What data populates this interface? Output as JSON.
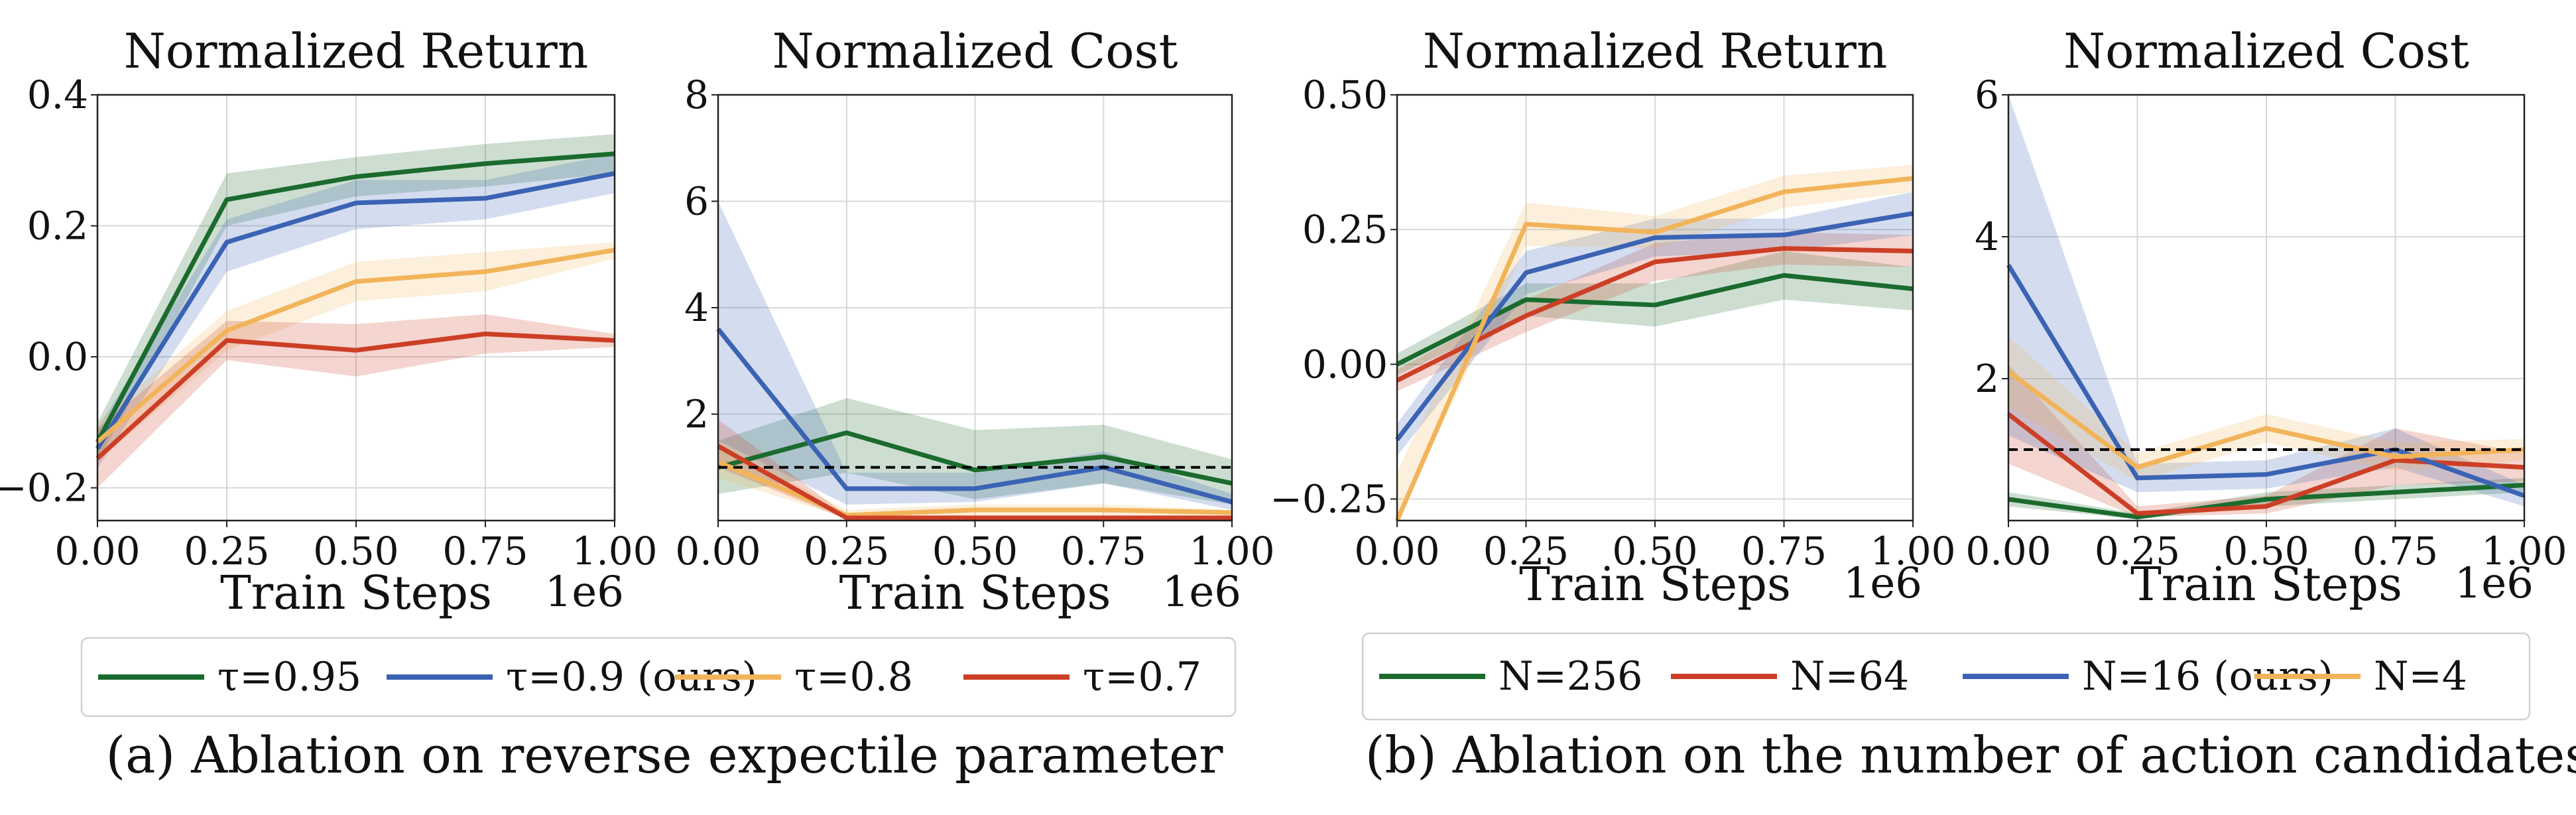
{
  "colors": {
    "green": "#1b6b2e",
    "blue": "#3b63b4",
    "orange": "#f2b45a",
    "red": "#cc3f26"
  },
  "captions": {
    "a": "(a) Ablation on reverse expectile parameter",
    "b": "(b) Ablation on the number of action candidates"
  },
  "chart_data": [
    {
      "type": "line",
      "title": "Normalized Return",
      "xlabel": "Train Steps",
      "x_offset_label": "1e6",
      "x": [
        0.0,
        0.25,
        0.5,
        0.75,
        1.0
      ],
      "xticks": [
        "0.00",
        "0.25",
        "0.50",
        "0.75",
        "1.00"
      ],
      "ylim": [
        -0.25,
        0.4
      ],
      "yticks": [
        -0.2,
        0.0,
        0.2,
        0.4
      ],
      "ytick_labels": [
        "−0.2",
        "0.0",
        "0.2",
        "0.4"
      ],
      "grid": true,
      "series": [
        {
          "name": "τ=0.95",
          "color": "green",
          "values": [
            -0.13,
            0.24,
            0.275,
            0.295,
            0.31
          ],
          "lower": [
            -0.16,
            0.2,
            0.245,
            0.26,
            0.28
          ],
          "upper": [
            -0.1,
            0.28,
            0.305,
            0.325,
            0.34
          ]
        },
        {
          "name": "τ=0.9 (ours)",
          "color": "blue",
          "values": [
            -0.14,
            0.175,
            0.235,
            0.242,
            0.28
          ],
          "lower": [
            -0.17,
            0.13,
            0.195,
            0.21,
            0.25
          ],
          "upper": [
            -0.11,
            0.21,
            0.27,
            0.27,
            0.31
          ]
        },
        {
          "name": "τ=0.8",
          "color": "orange",
          "values": [
            -0.13,
            0.04,
            0.115,
            0.13,
            0.163
          ],
          "lower": [
            -0.16,
            0.01,
            0.085,
            0.1,
            0.15
          ],
          "upper": [
            -0.1,
            0.07,
            0.145,
            0.16,
            0.175
          ]
        },
        {
          "name": "τ=0.7",
          "color": "red",
          "values": [
            -0.155,
            0.025,
            0.01,
            0.035,
            0.025
          ],
          "lower": [
            -0.2,
            -0.005,
            -0.03,
            0.005,
            0.015
          ],
          "upper": [
            -0.11,
            0.055,
            0.05,
            0.065,
            0.035
          ]
        }
      ]
    },
    {
      "type": "line",
      "title": "Normalized Cost",
      "xlabel": "Train Steps",
      "x_offset_label": "1e6",
      "x": [
        0.0,
        0.25,
        0.5,
        0.75,
        1.0
      ],
      "xticks": [
        "0.00",
        "0.25",
        "0.50",
        "0.75",
        "1.00"
      ],
      "ylim": [
        0,
        8
      ],
      "yticks": [
        2,
        4,
        6,
        8
      ],
      "ytick_labels": [
        "2",
        "4",
        "6",
        "8"
      ],
      "threshold": 1.0,
      "grid": true,
      "series": [
        {
          "name": "τ=0.95",
          "color": "green",
          "values": [
            1.0,
            1.65,
            0.95,
            1.2,
            0.7
          ],
          "lower": [
            0.5,
            0.9,
            0.4,
            0.7,
            0.3
          ],
          "upper": [
            1.5,
            2.3,
            1.7,
            1.8,
            1.15
          ]
        },
        {
          "name": "τ=0.9 (ours)",
          "color": "blue",
          "values": [
            3.6,
            0.6,
            0.6,
            1.0,
            0.35
          ],
          "lower": [
            1.5,
            0.3,
            0.35,
            0.7,
            0.2
          ],
          "upper": [
            6.0,
            0.9,
            0.9,
            1.3,
            0.5
          ]
        },
        {
          "name": "τ=0.8",
          "color": "orange",
          "values": [
            1.1,
            0.1,
            0.2,
            0.2,
            0.15
          ],
          "lower": [
            0.8,
            0.05,
            0.1,
            0.1,
            0.1
          ],
          "upper": [
            1.4,
            0.2,
            0.3,
            0.3,
            0.2
          ]
        },
        {
          "name": "τ=0.7",
          "color": "red",
          "values": [
            1.4,
            0.05,
            0.05,
            0.05,
            0.05
          ],
          "lower": [
            1.0,
            0.02,
            0.02,
            0.02,
            0.02
          ],
          "upper": [
            1.9,
            0.1,
            0.1,
            0.1,
            0.1
          ]
        }
      ]
    },
    {
      "type": "line",
      "title": "Normalized Return",
      "xlabel": "Train Steps",
      "x_offset_label": "1e6",
      "x": [
        0.0,
        0.25,
        0.5,
        0.75,
        1.0
      ],
      "xticks": [
        "0.00",
        "0.25",
        "0.50",
        "0.75",
        "1.00"
      ],
      "ylim": [
        -0.29,
        0.5
      ],
      "yticks": [
        -0.25,
        0.0,
        0.25,
        0.5
      ],
      "ytick_labels": [
        "−0.25",
        "0.00",
        "0.25",
        "0.50"
      ],
      "grid": true,
      "series": [
        {
          "name": "N=256",
          "color": "green",
          "values": [
            0.0,
            0.12,
            0.11,
            0.165,
            0.14
          ],
          "lower": [
            -0.02,
            0.09,
            0.07,
            0.12,
            0.1
          ],
          "upper": [
            0.02,
            0.15,
            0.15,
            0.21,
            0.18
          ]
        },
        {
          "name": "N=64",
          "color": "red",
          "values": [
            -0.03,
            0.09,
            0.19,
            0.215,
            0.21
          ],
          "lower": [
            -0.05,
            0.06,
            0.155,
            0.185,
            0.18
          ],
          "upper": [
            -0.01,
            0.12,
            0.225,
            0.245,
            0.24
          ]
        },
        {
          "name": "N=16 (ours)",
          "color": "blue",
          "values": [
            -0.14,
            0.17,
            0.235,
            0.24,
            0.28
          ],
          "lower": [
            -0.17,
            0.13,
            0.2,
            0.21,
            0.24
          ],
          "upper": [
            -0.11,
            0.21,
            0.27,
            0.27,
            0.32
          ]
        },
        {
          "name": "N=4",
          "color": "orange",
          "values": [
            -0.29,
            0.26,
            0.245,
            0.32,
            0.345
          ],
          "lower": [
            -0.29,
            0.22,
            0.215,
            0.29,
            0.32
          ],
          "upper": [
            -0.2,
            0.3,
            0.275,
            0.35,
            0.37
          ]
        }
      ]
    },
    {
      "type": "line",
      "title": "Normalized Cost",
      "xlabel": "Train Steps",
      "x_offset_label": "1e6",
      "x": [
        0.0,
        0.25,
        0.5,
        0.75,
        1.0
      ],
      "xticks": [
        "0.00",
        "0.25",
        "0.50",
        "0.75",
        "1.00"
      ],
      "ylim": [
        0,
        6
      ],
      "yticks": [
        2,
        4,
        6
      ],
      "ytick_labels": [
        "2",
        "4",
        "6"
      ],
      "threshold": 1.0,
      "grid": true,
      "series": [
        {
          "name": "N=256",
          "color": "green",
          "values": [
            0.3,
            0.05,
            0.3,
            0.4,
            0.5
          ],
          "lower": [
            0.2,
            0.02,
            0.2,
            0.3,
            0.4
          ],
          "upper": [
            0.4,
            0.1,
            0.4,
            0.5,
            0.6
          ]
        },
        {
          "name": "N=64",
          "color": "red",
          "values": [
            1.5,
            0.1,
            0.2,
            0.85,
            0.75
          ],
          "lower": [
            0.8,
            0.05,
            0.1,
            0.5,
            0.55
          ],
          "upper": [
            2.2,
            0.2,
            0.35,
            1.3,
            0.95
          ]
        },
        {
          "name": "N=16 (ours)",
          "color": "blue",
          "values": [
            3.6,
            0.6,
            0.65,
            1.0,
            0.35
          ],
          "lower": [
            1.2,
            0.4,
            0.45,
            0.75,
            0.2
          ],
          "upper": [
            6.0,
            0.8,
            0.85,
            1.3,
            0.5
          ]
        },
        {
          "name": "N=4",
          "color": "orange",
          "values": [
            2.1,
            0.75,
            1.3,
            0.9,
            1.0
          ],
          "lower": [
            1.6,
            0.55,
            1.1,
            0.7,
            0.85
          ],
          "upper": [
            2.6,
            0.95,
            1.5,
            1.1,
            1.15
          ]
        }
      ]
    }
  ],
  "legends": {
    "a": [
      "τ=0.95",
      "τ=0.9 (ours)",
      "τ=0.8",
      "τ=0.7"
    ],
    "b": [
      "N=256",
      "N=64",
      "N=16 (ours)",
      "N=4"
    ]
  }
}
